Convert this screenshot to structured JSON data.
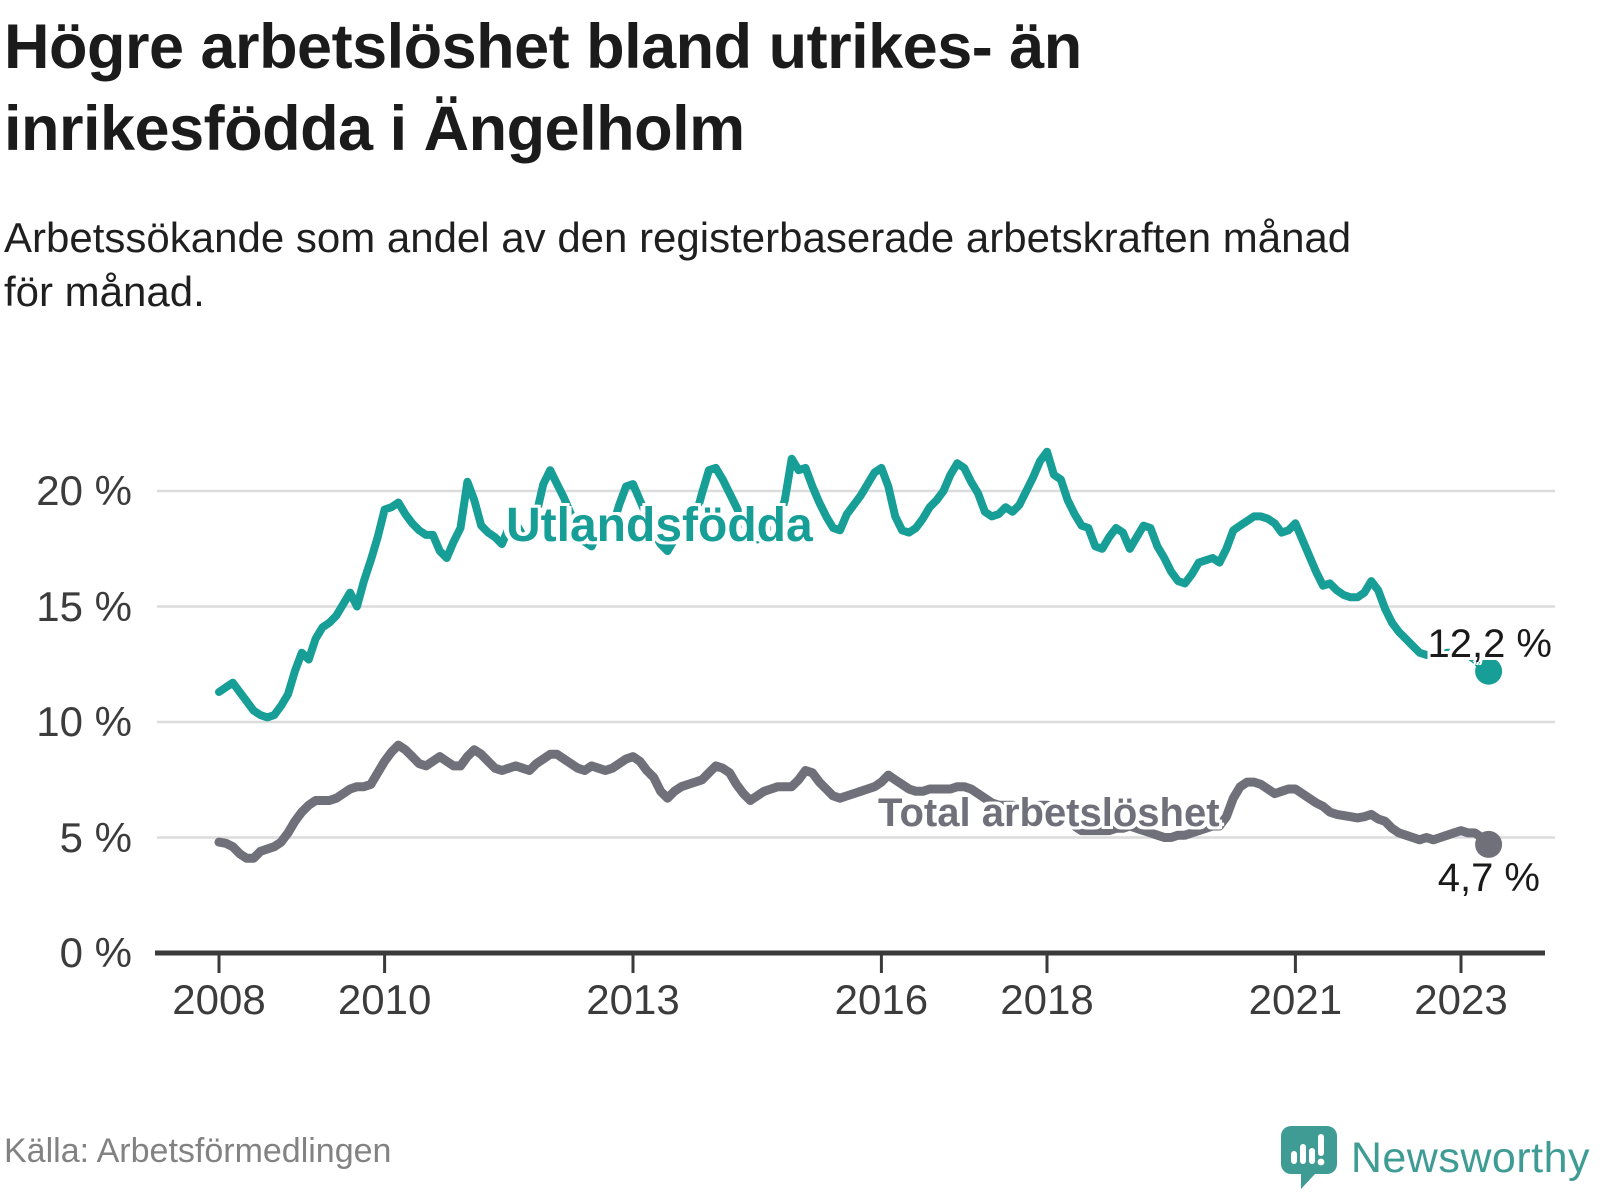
{
  "header": {
    "title": "Högre arbetslöshet bland utrikes- än inrikesfödda i Ängelholm",
    "title_lines": [
      "Högre arbetslöshet bland utrikes- än",
      "inrikesfödda i Ängelholm"
    ],
    "subtitle": "Arbetssökande som andel av den registerbaserade arbetskraften månad för månad.",
    "subtitle_lines": [
      "Arbetssökande som andel av den registerbaserade arbetskraften månad",
      "för månad."
    ]
  },
  "chart_data": {
    "type": "line",
    "title": "Högre arbetslöshet bland utrikes- än inrikesfödda i Ängelholm",
    "subtitle": "Arbetssökande som andel av den registerbaserade arbetskraften månad för månad.",
    "unit": "%",
    "frequency": "monthly",
    "x_start": "2008-01",
    "x_end": "2023-05",
    "x_tick_years": [
      2008,
      2010,
      2013,
      2016,
      2018,
      2021,
      2023
    ],
    "x_tick_labels": [
      "2008",
      "2010",
      "2013",
      "2016",
      "2018",
      "2021",
      "2023"
    ],
    "y_ticks": [
      0,
      5,
      10,
      15,
      20
    ],
    "y_tick_labels": [
      "0 %",
      "5 %",
      "10 %",
      "15 %",
      "20 %"
    ],
    "ylim": [
      0,
      22.5
    ],
    "grid": "horizontal",
    "colors": {
      "utlandsfodda": "#169e97",
      "total": "#70707a",
      "gridline": "#dcdcdc",
      "axis": "#3a3a3a"
    },
    "series": [
      {
        "name": "Utlandsfödda",
        "color": "#169e97",
        "end_value": 12.2,
        "end_label": "12,2 %",
        "values": [
          11.3,
          11.5,
          11.7,
          11.3,
          10.9,
          10.5,
          10.3,
          10.2,
          10.3,
          10.7,
          11.2,
          12.2,
          13.0,
          12.7,
          13.6,
          14.1,
          14.3,
          14.6,
          15.1,
          15.6,
          15.0,
          16.1,
          17.0,
          18.0,
          19.2,
          19.3,
          19.5,
          19.0,
          18.6,
          18.3,
          18.1,
          18.1,
          17.4,
          17.1,
          17.8,
          18.4,
          20.4,
          19.6,
          18.5,
          18.2,
          18.0,
          17.7,
          18.4,
          18.6,
          18.1,
          17.9,
          19.0,
          20.3,
          20.9,
          20.3,
          19.7,
          19.0,
          18.4,
          17.8,
          17.6,
          18.3,
          18.0,
          18.4,
          19.4,
          20.2,
          20.3,
          19.6,
          18.9,
          18.2,
          17.7,
          17.4,
          17.9,
          18.3,
          18.5,
          18.8,
          19.9,
          20.9,
          21.0,
          20.5,
          19.9,
          19.3,
          18.6,
          18.1,
          17.9,
          18.3,
          18.2,
          18.6,
          19.6,
          21.4,
          20.9,
          21.0,
          20.2,
          19.5,
          18.9,
          18.4,
          18.3,
          19.0,
          19.4,
          19.8,
          20.3,
          20.8,
          21.0,
          20.2,
          18.9,
          18.3,
          18.2,
          18.4,
          18.8,
          19.3,
          19.6,
          20.0,
          20.7,
          21.2,
          21.0,
          20.4,
          19.9,
          19.1,
          18.9,
          19.0,
          19.3,
          19.1,
          19.4,
          20.0,
          20.6,
          21.3,
          21.7,
          20.7,
          20.5,
          19.6,
          19.0,
          18.5,
          18.4,
          17.6,
          17.5,
          18.0,
          18.4,
          18.2,
          17.5,
          18.0,
          18.5,
          18.4,
          17.6,
          17.1,
          16.5,
          16.1,
          16.0,
          16.4,
          16.9,
          17.0,
          17.1,
          16.9,
          17.5,
          18.3,
          18.5,
          18.7,
          18.9,
          18.9,
          18.8,
          18.6,
          18.2,
          18.3,
          18.6,
          17.9,
          17.2,
          16.5,
          15.9,
          16.0,
          15.7,
          15.5,
          15.4,
          15.4,
          15.6,
          16.1,
          15.7,
          14.9,
          14.3,
          13.9,
          13.6,
          13.3,
          13.0,
          12.9,
          12.9,
          12.9,
          13.0,
          13.0,
          12.9,
          12.9,
          12.7,
          12.4,
          12.2
        ]
      },
      {
        "name": "Total arbetslöshet",
        "color": "#70707a",
        "end_value": 4.7,
        "end_label": "4,7 %",
        "values": [
          4.8,
          4.75,
          4.6,
          4.3,
          4.1,
          4.1,
          4.4,
          4.5,
          4.6,
          4.8,
          5.2,
          5.7,
          6.1,
          6.4,
          6.6,
          6.6,
          6.6,
          6.7,
          6.9,
          7.1,
          7.2,
          7.2,
          7.3,
          7.8,
          8.3,
          8.7,
          9.0,
          8.8,
          8.5,
          8.2,
          8.1,
          8.3,
          8.5,
          8.3,
          8.1,
          8.1,
          8.5,
          8.8,
          8.6,
          8.3,
          8.0,
          7.9,
          8.0,
          8.1,
          8.0,
          7.9,
          8.2,
          8.4,
          8.6,
          8.6,
          8.4,
          8.2,
          8.0,
          7.9,
          8.1,
          8.0,
          7.9,
          8.0,
          8.2,
          8.4,
          8.5,
          8.3,
          7.9,
          7.6,
          7.0,
          6.7,
          7.0,
          7.2,
          7.3,
          7.4,
          7.5,
          7.8,
          8.1,
          8.0,
          7.8,
          7.3,
          6.9,
          6.6,
          6.8,
          7.0,
          7.1,
          7.2,
          7.2,
          7.2,
          7.5,
          7.9,
          7.8,
          7.4,
          7.1,
          6.8,
          6.7,
          6.8,
          6.9,
          7.0,
          7.1,
          7.2,
          7.4,
          7.7,
          7.5,
          7.3,
          7.1,
          7.0,
          7.0,
          7.1,
          7.1,
          7.1,
          7.1,
          7.2,
          7.2,
          7.1,
          6.9,
          6.7,
          6.5,
          6.4,
          6.4,
          6.4,
          6.3,
          6.3,
          6.3,
          6.4,
          6.4,
          6.3,
          6.1,
          5.8,
          5.5,
          5.3,
          5.3,
          5.3,
          5.3,
          5.3,
          5.4,
          5.4,
          5.5,
          5.4,
          5.3,
          5.2,
          5.1,
          5.0,
          5.0,
          5.1,
          5.1,
          5.2,
          5.3,
          5.4,
          5.5,
          5.5,
          5.9,
          6.7,
          7.2,
          7.4,
          7.4,
          7.3,
          7.1,
          6.9,
          7.0,
          7.1,
          7.1,
          6.9,
          6.7,
          6.5,
          6.35,
          6.1,
          6.0,
          5.95,
          5.9,
          5.85,
          5.9,
          6.0,
          5.8,
          5.7,
          5.4,
          5.2,
          5.1,
          5.0,
          4.9,
          5.0,
          4.9,
          5.0,
          5.1,
          5.2,
          5.3,
          5.2,
          5.2,
          5.0,
          4.7
        ]
      }
    ],
    "legend_position": "inline-labels"
  },
  "footer": {
    "source": "Källa: Arbetsförmedlingen",
    "brand": "Newsworthy"
  }
}
